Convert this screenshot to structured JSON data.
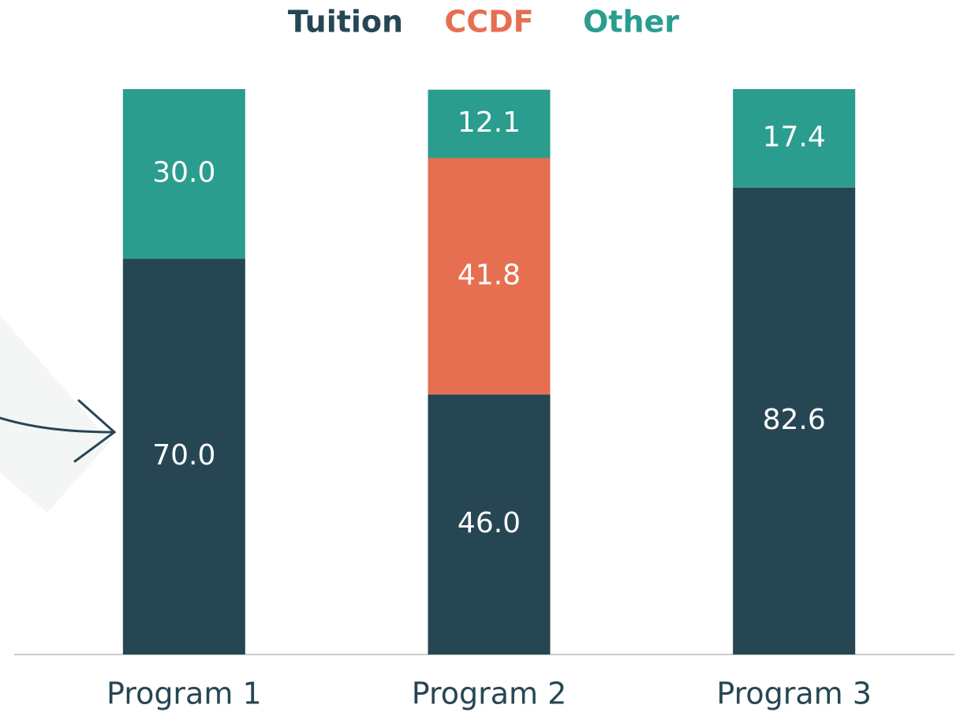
{
  "chart_data": {
    "type": "stacked_bar",
    "categories": [
      "Program 1",
      "Program 2",
      "Program 3"
    ],
    "series": [
      {
        "name": "Tuition",
        "color": "#264653",
        "values": [
          70.0,
          46.0,
          82.6
        ],
        "value_labels": [
          "70.0",
          "46.0",
          "82.6"
        ]
      },
      {
        "name": "CCDF",
        "color": "#e76f51",
        "values": [
          null,
          41.8,
          null
        ],
        "value_labels": [
          null,
          "41.8",
          null
        ]
      },
      {
        "name": "Other",
        "color": "#2a9d8f",
        "values": [
          30.0,
          12.1,
          17.4
        ],
        "value_labels": [
          "30.0",
          "12.1",
          "17.4"
        ]
      }
    ],
    "ylim": [
      0,
      100
    ],
    "legend": "top"
  }
}
